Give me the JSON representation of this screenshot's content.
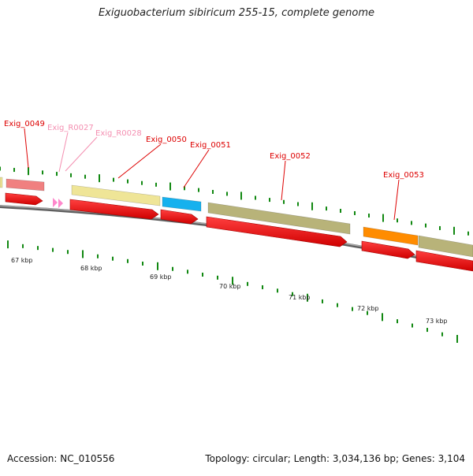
{
  "title": "Exiguobacterium sibiricum 255-15, complete genome",
  "footer": {
    "accession": "Accession: NC_010556",
    "meta": "Topology: circular; Length: 3,034,136 bp; Genes: 3,104"
  },
  "scale": {
    "unit": "kbp",
    "labels": [
      "67 kbp",
      "68 kbp",
      "69 kbp",
      "70 kbp",
      "71 kbp",
      "72 kbp",
      "73 kbp"
    ]
  },
  "genes": [
    {
      "label": "Exig_0049",
      "type": "CDS",
      "strand": "+",
      "color": "#f08080",
      "label_color": "#dd0000"
    },
    {
      "label": "Exig_R0027",
      "type": "tRNA",
      "strand": "+",
      "color": "#ff88cc",
      "label_color": "#f48fb1"
    },
    {
      "label": "Exig_R0028",
      "type": "tRNA",
      "strand": "+",
      "color": "#ff88cc",
      "label_color": "#f48fb1"
    },
    {
      "label": "Exig_0050",
      "type": "CDS",
      "strand": "+",
      "color": "#efe597",
      "label_color": "#dd0000"
    },
    {
      "label": "Exig_0051",
      "type": "CDS",
      "strand": "+",
      "color": "#16b1ee",
      "label_color": "#dd0000"
    },
    {
      "label": "Exig_0052",
      "type": "CDS",
      "strand": "+",
      "color": "#b8b379",
      "label_color": "#dd0000"
    },
    {
      "label": "Exig_0053",
      "type": "CDS",
      "strand": "+",
      "color": "#ff8c00",
      "label_color": "#dd0000"
    }
  ],
  "colors": {
    "gene_arrow": "#ee1111",
    "backbone": "#7a7a7a",
    "tick": "#118811",
    "label_text": "#222222"
  }
}
